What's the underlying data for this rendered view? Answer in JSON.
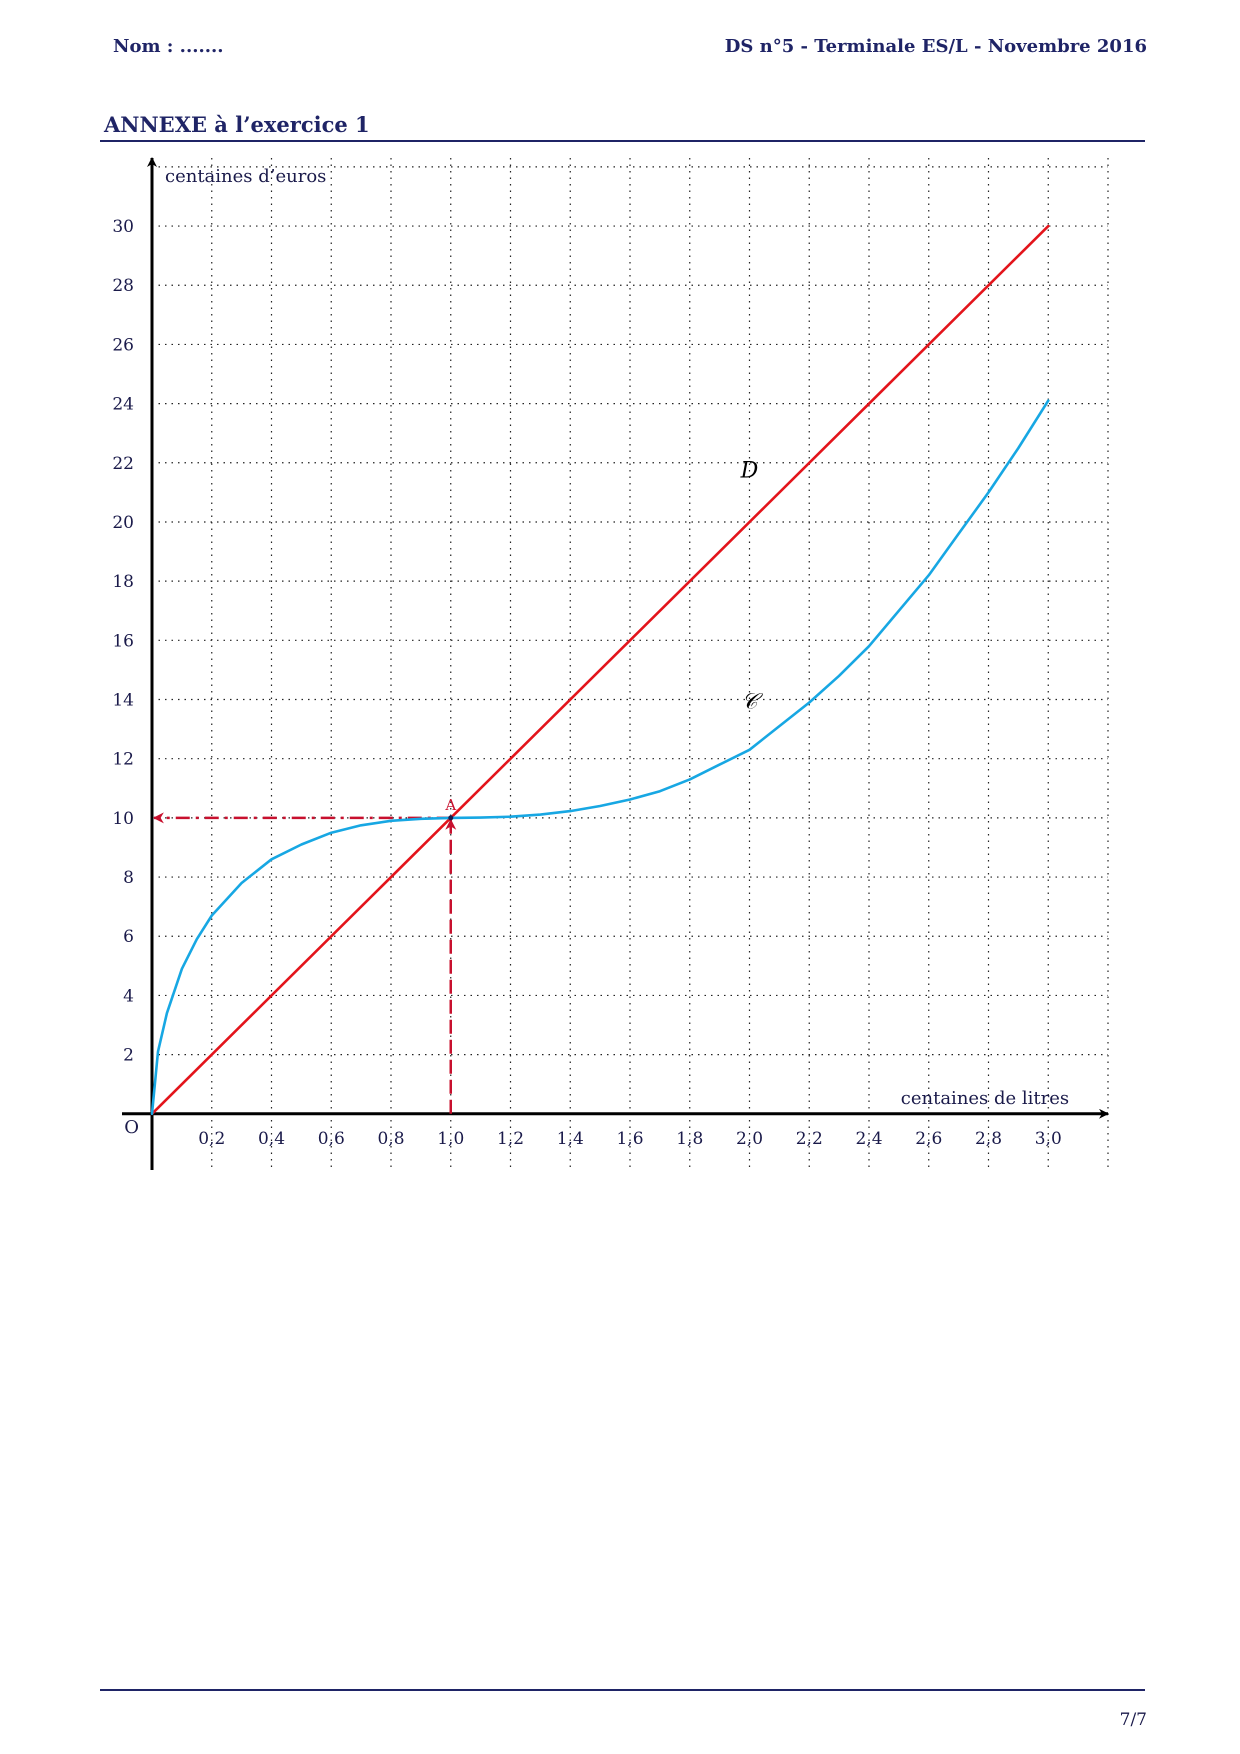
{
  "header": {
    "left": "Nom : .......",
    "right": "DS n°5  -  Terminale ES/L -  Novembre 2016"
  },
  "title": "ANNEXE à l’exercice 1",
  "footer": {
    "page": "7/7"
  },
  "colors": {
    "line_D": "#e3141b",
    "curve_C": "#17a7e3",
    "guide": "#c8102e",
    "text": "#1f2466"
  },
  "chart_data": {
    "type": "line",
    "title": "",
    "xlabel": "centaines de litres",
    "ylabel": "centaines d’euros",
    "origin_label": "O",
    "xlim": [
      0,
      3.2
    ],
    "ylim": [
      -1.9,
      32.3
    ],
    "x_ticks": [
      0.2,
      0.4,
      0.6,
      0.8,
      1.0,
      1.2,
      1.4,
      1.6,
      1.8,
      2.0,
      2.2,
      2.4,
      2.6,
      2.8,
      3.0
    ],
    "x_tick_labels": [
      "0,2",
      "0,4",
      "0,6",
      "0,8",
      "1,0",
      "1,2",
      "1,4",
      "1,6",
      "1,8",
      "2,0",
      "2,2",
      "2,4",
      "2,6",
      "2,8",
      "3,0"
    ],
    "y_ticks": [
      2,
      4,
      6,
      8,
      10,
      12,
      14,
      16,
      18,
      20,
      22,
      24,
      26,
      28,
      30
    ],
    "y_tick_labels": [
      "2",
      "4",
      "6",
      "8",
      "10",
      "12",
      "14",
      "16",
      "18",
      "20",
      "22",
      "24",
      "26",
      "28",
      "30"
    ],
    "grid": true,
    "series": [
      {
        "name": "D",
        "color": "#e3141b",
        "x": [
          0,
          3
        ],
        "y": [
          0,
          30
        ]
      },
      {
        "name": "C",
        "color": "#17a7e3",
        "x": [
          0,
          0.02,
          0.05,
          0.1,
          0.15,
          0.2,
          0.3,
          0.4,
          0.5,
          0.6,
          0.7,
          0.8,
          0.9,
          1.0,
          1.1,
          1.2,
          1.3,
          1.4,
          1.5,
          1.6,
          1.7,
          1.8,
          1.9,
          2.0,
          2.1,
          2.2,
          2.3,
          2.4,
          2.5,
          2.6,
          2.7,
          2.8,
          2.9,
          3.0
        ],
        "y": [
          0,
          2.1,
          3.4,
          4.9,
          5.9,
          6.7,
          7.8,
          8.6,
          9.1,
          9.5,
          9.75,
          9.9,
          9.97,
          10.0,
          10.01,
          10.04,
          10.11,
          10.23,
          10.4,
          10.62,
          10.9,
          11.3,
          11.8,
          12.3,
          13.1,
          13.9,
          14.8,
          15.8,
          17.0,
          18.2,
          19.6,
          21.0,
          22.5,
          24.1
        ]
      }
    ],
    "annotations": [
      {
        "text": "D",
        "x": 2.0,
        "y": 21.5
      },
      {
        "text": "𝒞",
        "x": 2.0,
        "y": 13.7
      },
      {
        "text": "A",
        "x": 1.0,
        "y": 10.0
      }
    ],
    "guides": {
      "point": [
        1.0,
        10.0
      ]
    }
  }
}
